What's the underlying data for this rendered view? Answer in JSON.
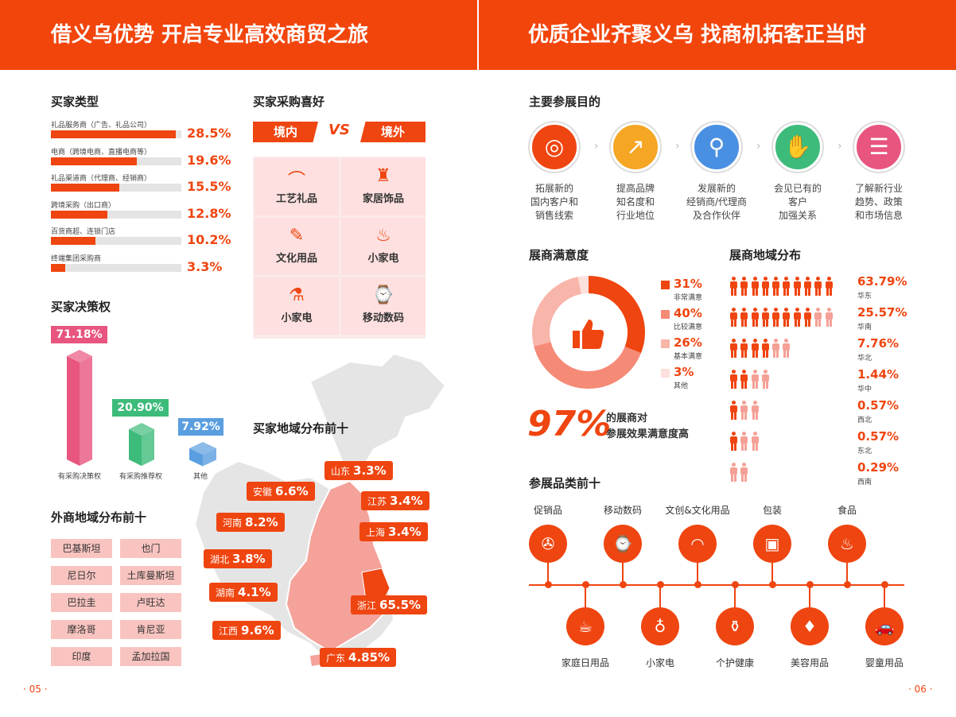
{
  "left_banner": {
    "title": "借义乌优势 开启专业高效商贸之旅"
  },
  "right_banner": {
    "title": "优质企业齐聚义乌 找商机拓客正当时"
  },
  "buyer_types": {
    "title": "买家类型",
    "items": [
      {
        "label": "礼品服务商（广告、礼品公司）",
        "value": "28.5%",
        "pct": 28.5
      },
      {
        "label": "电商（跨境电商、直播电商等）",
        "value": "19.6%",
        "pct": 19.6
      },
      {
        "label": "礼品渠道商（代理商、经销商）",
        "value": "15.5%",
        "pct": 15.5
      },
      {
        "label": "跨境采购（出口商）",
        "value": "12.8%",
        "pct": 12.8
      },
      {
        "label": "百货商超、连锁门店",
        "value": "10.2%",
        "pct": 10.2
      },
      {
        "label": "终端集团采购商",
        "value": "3.3%",
        "pct": 3.3
      }
    ]
  },
  "preference": {
    "title": "买家采购喜好",
    "domestic": "境内",
    "vs": "VS",
    "overseas": "境外",
    "cells": [
      {
        "label": "工艺礼品",
        "icon": "fan-icon"
      },
      {
        "label": "家居饰品",
        "icon": "lamp-icon"
      },
      {
        "label": "文化用品",
        "icon": "stationery-icon"
      },
      {
        "label": "小家电",
        "icon": "kettle-icon"
      },
      {
        "label": "小家电",
        "icon": "appliance-icon"
      },
      {
        "label": "移动数码",
        "icon": "smartwatch-icon"
      }
    ]
  },
  "decision": {
    "title": "买家决策权",
    "bars": [
      {
        "label": "有采购决策权",
        "value": "71.18%",
        "pct": 71.18,
        "color": "#e8557f"
      },
      {
        "label": "有采购推荐权",
        "value": "20.90%",
        "pct": 20.9,
        "color": "#3dbb7a"
      },
      {
        "label": "其他",
        "value": "7.92%",
        "pct": 7.92,
        "color": "#5a9ee0"
      }
    ]
  },
  "foreign": {
    "title": "外商地域分布前十",
    "countries": [
      "巴基斯坦",
      "也门",
      "尼日尔",
      "土库曼斯坦",
      "巴拉圭",
      "卢旺达",
      "摩洛哥",
      "肯尼亚",
      "印度",
      "孟加拉国"
    ]
  },
  "buyer_region": {
    "title": "买家地域分布前十",
    "labels": [
      {
        "name": "山东",
        "value": "3.3%"
      },
      {
        "name": "安徽",
        "value": "6.6%"
      },
      {
        "name": "江苏",
        "value": "3.4%"
      },
      {
        "name": "河南",
        "value": "8.2%"
      },
      {
        "name": "上海",
        "value": "3.4%"
      },
      {
        "name": "湖北",
        "value": "3.8%"
      },
      {
        "name": "湖南",
        "value": "4.1%"
      },
      {
        "name": "浙江",
        "value": "65.5%"
      },
      {
        "name": "江西",
        "value": "9.6%"
      },
      {
        "name": "广东",
        "value": "4.85%"
      }
    ]
  },
  "purpose": {
    "title": "主要参展目的",
    "arrow": "›",
    "items": [
      {
        "text": "拓展新的\n国内客户和\n销售线索",
        "color": "#ef4510",
        "icon": "target-icon"
      },
      {
        "text": "提高品牌\n知名度和\n行业地位",
        "color": "#f5a623",
        "icon": "growth-chart-icon"
      },
      {
        "text": "发展新的\n经销商/代理商\n及合作伙伴",
        "color": "#4a90e2",
        "icon": "user-search-icon"
      },
      {
        "text": "会见已有的\n客户\n加强关系",
        "color": "#3dbb7a",
        "icon": "handshake-icon"
      },
      {
        "text": "了解新行业\n趋势、政策\n和市场信息",
        "color": "#e8557f",
        "icon": "document-icon"
      }
    ]
  },
  "satisfaction": {
    "title": "展商满意度",
    "big": "97%",
    "big_text1": "的展商对",
    "big_text2": "参展效果满意度高",
    "items": [
      {
        "value": "31%",
        "label": "非常满意",
        "pct": 31,
        "color": "#ef4510"
      },
      {
        "value": "40%",
        "label": "比较满意",
        "pct": 40,
        "color": "#f58a77"
      },
      {
        "value": "26%",
        "label": "基本满意",
        "pct": 26,
        "color": "#f8b5a9"
      },
      {
        "value": "3%",
        "label": "其他",
        "pct": 3,
        "color": "#fbe0db"
      }
    ]
  },
  "exhibitor_region": {
    "title": "展商地域分布",
    "items": [
      {
        "value": "63.79%",
        "label": "华东",
        "full": 10,
        "light": 0
      },
      {
        "value": "25.57%",
        "label": "华南",
        "full": 8,
        "light": 2
      },
      {
        "value": "7.76%",
        "label": "华北",
        "full": 4,
        "light": 2
      },
      {
        "value": "1.44%",
        "label": "华中",
        "full": 2,
        "light": 2
      },
      {
        "value": "0.57%",
        "label": "西北",
        "full": 1,
        "light": 2
      },
      {
        "value": "0.57%",
        "label": "东北",
        "full": 1,
        "light": 2
      },
      {
        "value": "0.29%",
        "label": "西南",
        "full": 0,
        "light": 2
      }
    ]
  },
  "categories": {
    "title": "参展品类前十",
    "top": [
      {
        "label": "促销品",
        "icon": "desk-fan-icon",
        "glyph": "✇"
      },
      {
        "label": "移动数码",
        "icon": "smartwatch-icon",
        "glyph": "⌚"
      },
      {
        "label": "文创&文化用品",
        "icon": "folding-fan-icon",
        "glyph": "◠"
      },
      {
        "label": "包装",
        "icon": "box-icon",
        "glyph": "▣"
      },
      {
        "label": "食品",
        "icon": "cake-icon",
        "glyph": "♨"
      }
    ],
    "bottom": [
      {
        "label": "家庭日用品",
        "icon": "blender-icon",
        "glyph": "☕"
      },
      {
        "label": "小家电",
        "icon": "vacuum-icon",
        "glyph": "♁"
      },
      {
        "label": "个护健康",
        "icon": "bottle-icon",
        "glyph": "⚱"
      },
      {
        "label": "美容用品",
        "icon": "cosmetic-icon",
        "glyph": "♦"
      },
      {
        "label": "婴童用品",
        "icon": "toy-car-icon",
        "glyph": "🚗"
      }
    ]
  },
  "pages": {
    "left": "· 05 ·",
    "right": "· 06 ·"
  }
}
